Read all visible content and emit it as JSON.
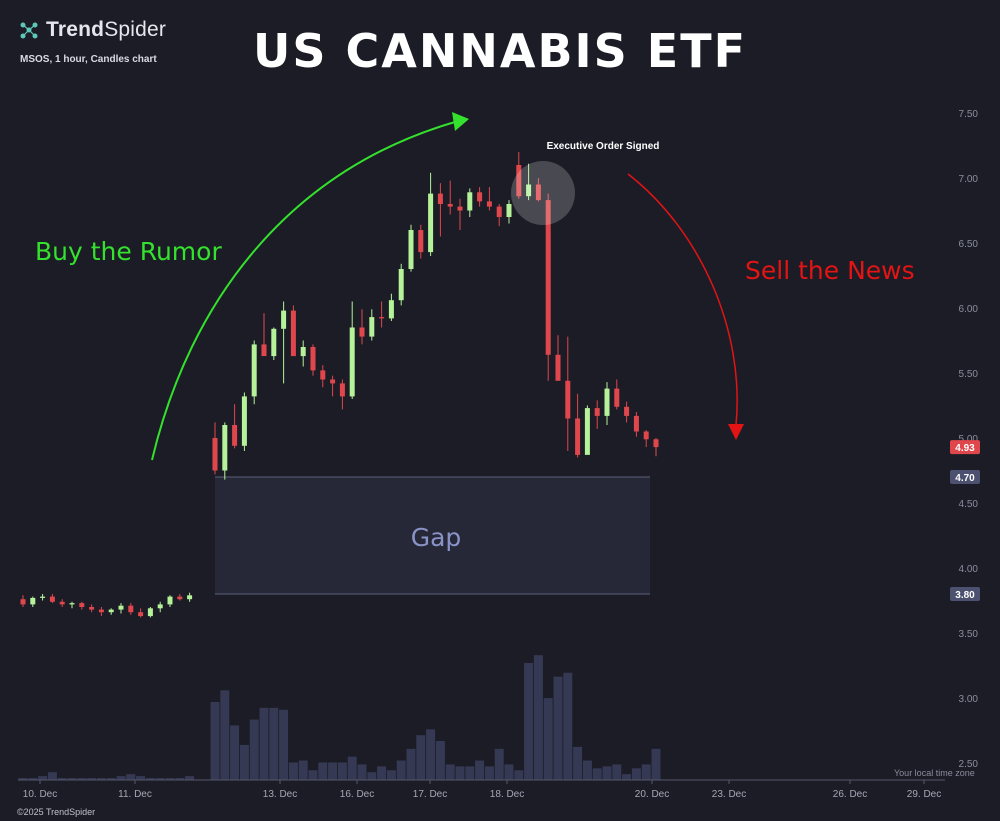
{
  "brand": {
    "logo_text_bold": "Trend",
    "logo_text_regular": "Spider",
    "icon": "trendspider-logo-icon"
  },
  "chart_info": "MSOS, 1 hour, Candles chart",
  "title": "US CANNABIS ETF",
  "footer": "©2025 TrendSpider",
  "timezone_note": "Your local time zone",
  "colors": {
    "up": "#b5f29a",
    "down": "#e0474c",
    "background": "#1b1c26",
    "rumor": "#34e12c",
    "news": "#e31414",
    "gap": "#262838",
    "volume": "#353953"
  },
  "chart_data": {
    "type": "candlestick",
    "symbol": "MSOS",
    "interval": "1 hour",
    "ylim": [
      2.35,
      7.6
    ],
    "y_ticks": [
      7.5,
      7.0,
      6.5,
      6.0,
      5.5,
      5.0,
      4.5,
      4.0,
      3.5,
      3.0,
      2.5
    ],
    "y_tick_labels": [
      "7.50",
      "7.00",
      "6.50",
      "6.00",
      "5.50",
      "5.00",
      "4.50",
      "4.00",
      "3.50",
      "3.00",
      "2.50"
    ],
    "x_ticks": [
      "10. Dec",
      "11. Dec",
      "13. Dec",
      "16. Dec",
      "17. Dec",
      "18. Dec",
      "20. Dec",
      "23. Dec",
      "26. Dec",
      "29. Dec"
    ],
    "price_labels": [
      {
        "value": 4.93,
        "text": "4.93",
        "color": "#e0474c"
      },
      {
        "value": 4.7,
        "text": "4.70",
        "color": "#4c5170"
      },
      {
        "value": 3.8,
        "text": "3.80",
        "color": "#4c5170"
      }
    ],
    "candles": [
      [
        3.76,
        3.79,
        3.7,
        3.72
      ],
      [
        3.72,
        3.78,
        3.7,
        3.77
      ],
      [
        3.77,
        3.8,
        3.75,
        3.78
      ],
      [
        3.78,
        3.8,
        3.73,
        3.74
      ],
      [
        3.74,
        3.76,
        3.7,
        3.72
      ],
      [
        3.72,
        3.74,
        3.69,
        3.73
      ],
      [
        3.73,
        3.74,
        3.68,
        3.7
      ],
      [
        3.7,
        3.72,
        3.66,
        3.68
      ],
      [
        3.68,
        3.7,
        3.63,
        3.66
      ],
      [
        3.66,
        3.69,
        3.64,
        3.68
      ],
      [
        3.68,
        3.73,
        3.65,
        3.71
      ],
      [
        3.71,
        3.73,
        3.64,
        3.66
      ],
      [
        3.66,
        3.69,
        3.62,
        3.63
      ],
      [
        3.63,
        3.7,
        3.62,
        3.69
      ],
      [
        3.69,
        3.74,
        3.66,
        3.72
      ],
      [
        3.72,
        3.79,
        3.7,
        3.78
      ],
      [
        3.78,
        3.8,
        3.75,
        3.76
      ],
      [
        3.76,
        3.81,
        3.74,
        3.79
      ],
      [
        5.0,
        5.12,
        4.72,
        4.75
      ],
      [
        4.75,
        5.12,
        4.68,
        5.1
      ],
      [
        5.1,
        5.26,
        4.92,
        4.94
      ],
      [
        4.94,
        5.35,
        4.9,
        5.32
      ],
      [
        5.32,
        5.75,
        5.26,
        5.72
      ],
      [
        5.72,
        5.96,
        5.64,
        5.63
      ],
      [
        5.63,
        5.85,
        5.6,
        5.84
      ],
      [
        5.84,
        6.05,
        5.42,
        5.98
      ],
      [
        5.98,
        6.02,
        5.65,
        5.63
      ],
      [
        5.63,
        5.75,
        5.55,
        5.7
      ],
      [
        5.7,
        5.72,
        5.48,
        5.52
      ],
      [
        5.52,
        5.56,
        5.39,
        5.45
      ],
      [
        5.45,
        5.48,
        5.32,
        5.42
      ],
      [
        5.42,
        5.45,
        5.22,
        5.32
      ],
      [
        5.32,
        6.05,
        5.3,
        5.85
      ],
      [
        5.85,
        5.99,
        5.72,
        5.78
      ],
      [
        5.78,
        5.99,
        5.75,
        5.93
      ],
      [
        5.93,
        6.05,
        5.85,
        5.92
      ],
      [
        5.92,
        6.11,
        5.9,
        6.06
      ],
      [
        6.06,
        6.34,
        6.02,
        6.3
      ],
      [
        6.3,
        6.64,
        6.28,
        6.6
      ],
      [
        6.6,
        6.64,
        6.38,
        6.43
      ],
      [
        6.43,
        7.04,
        6.4,
        6.88
      ],
      [
        6.88,
        6.96,
        6.55,
        6.8
      ],
      [
        6.8,
        6.98,
        6.72,
        6.78
      ],
      [
        6.78,
        6.84,
        6.6,
        6.75
      ],
      [
        6.75,
        6.92,
        6.7,
        6.89
      ],
      [
        6.89,
        6.93,
        6.78,
        6.82
      ],
      [
        6.82,
        6.93,
        6.75,
        6.78
      ],
      [
        6.78,
        6.8,
        6.63,
        6.7
      ],
      [
        6.7,
        6.83,
        6.65,
        6.8
      ],
      [
        7.1,
        7.2,
        6.84,
        6.86
      ],
      [
        6.86,
        7.11,
        6.83,
        6.95
      ],
      [
        6.95,
        7.0,
        6.82,
        6.83
      ],
      [
        6.83,
        6.88,
        5.44,
        5.64
      ],
      [
        5.64,
        5.79,
        5.48,
        5.44
      ],
      [
        5.44,
        5.78,
        4.9,
        5.15
      ],
      [
        5.15,
        5.34,
        4.85,
        4.87
      ],
      [
        4.87,
        5.25,
        4.9,
        5.23
      ],
      [
        5.23,
        5.29,
        5.07,
        5.17
      ],
      [
        5.17,
        5.43,
        5.1,
        5.38
      ],
      [
        5.38,
        5.45,
        5.22,
        5.24
      ],
      [
        5.24,
        5.28,
        5.12,
        5.17
      ],
      [
        5.17,
        5.2,
        5.01,
        5.05
      ],
      [
        5.05,
        5.06,
        4.93,
        4.99
      ],
      [
        4.99,
        5.0,
        4.86,
        4.93
      ]
    ],
    "volume_series": [
      1,
      1,
      2,
      4,
      1,
      1,
      1,
      1,
      1,
      1,
      2,
      3,
      2,
      1,
      1,
      1,
      1,
      2,
      40,
      46,
      28,
      18,
      31,
      37,
      37,
      36,
      9,
      10,
      5,
      9,
      9,
      9,
      12,
      8,
      4,
      7,
      5,
      10,
      16,
      23,
      26,
      20,
      8,
      7,
      7,
      10,
      7,
      16,
      8,
      5,
      60,
      64,
      42,
      53,
      55,
      17,
      10,
      6,
      7,
      8,
      3,
      6,
      8,
      16
    ],
    "annotations": [
      {
        "text": "Buy the Rumor",
        "color": "#34e12c"
      },
      {
        "text": "Sell the News",
        "color": "#e31414"
      },
      {
        "text": "Executive Order Signed",
        "color": "#ffffff"
      },
      {
        "text": "Gap",
        "color": "#8a93c8",
        "range": [
          3.8,
          4.7
        ]
      }
    ]
  }
}
